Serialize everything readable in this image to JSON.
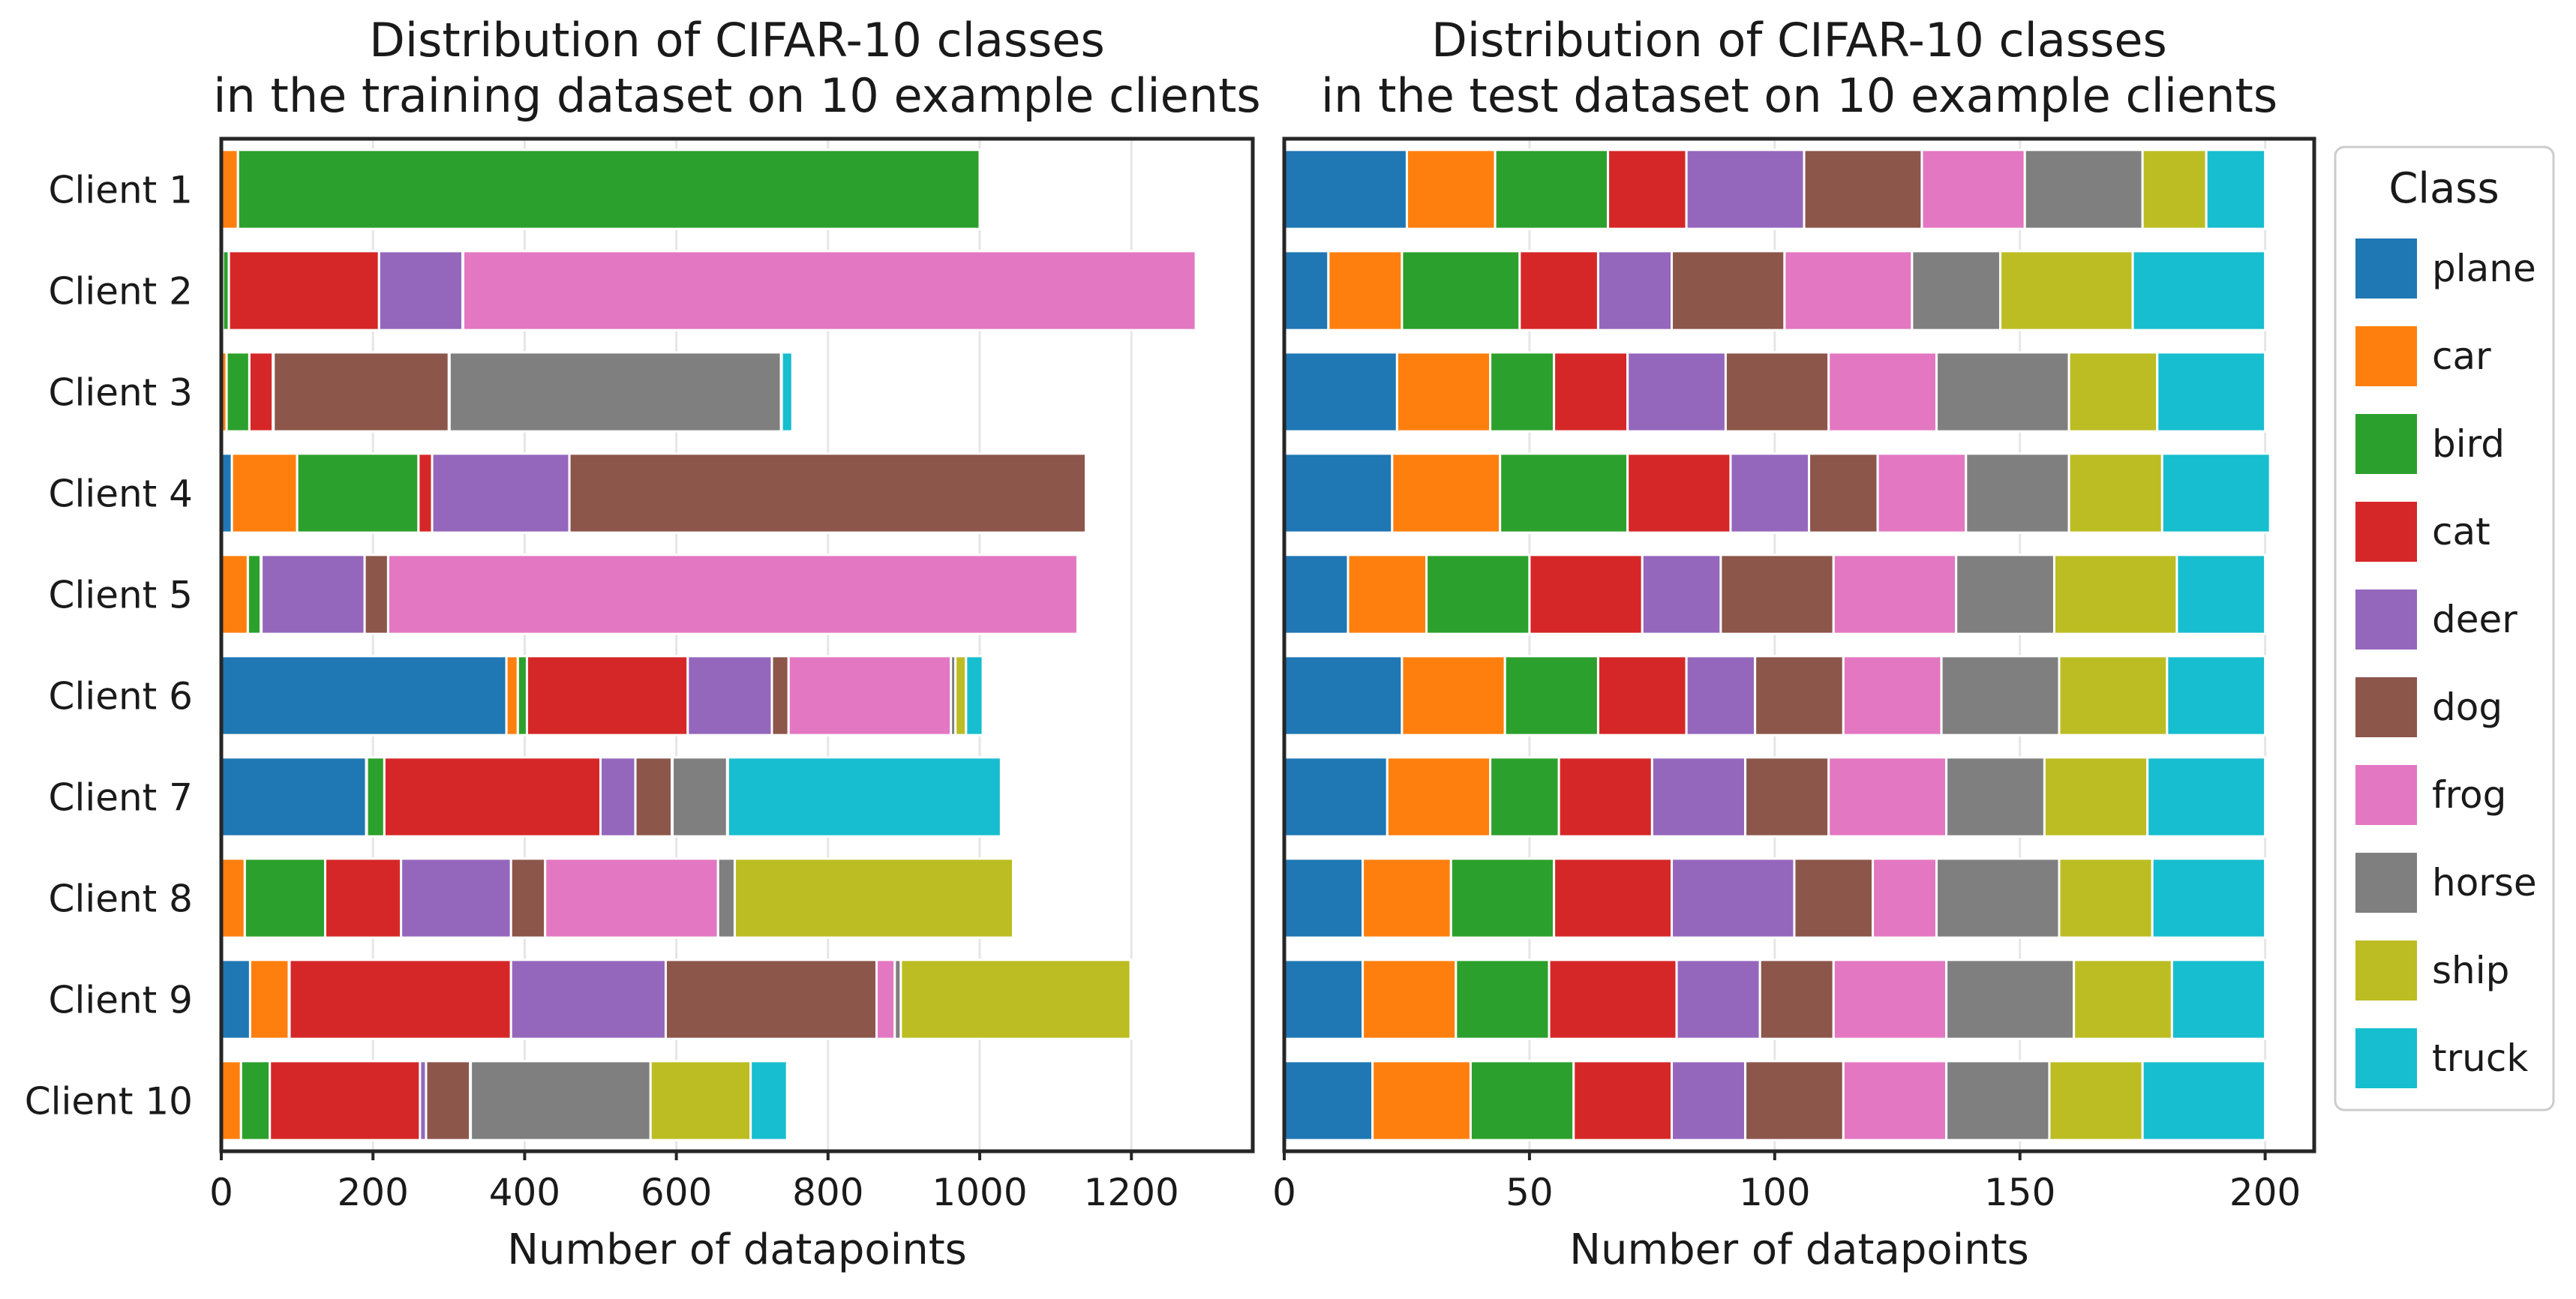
{
  "chart_data": [
    {
      "type": "bar",
      "orientation": "horizontal",
      "stacked": true,
      "title_lines": [
        "Distribution of CIFAR-10 classes",
        "in the training dataset on 10 example clients"
      ],
      "xlabel": "Number of datapoints",
      "xlim": [
        0,
        1360
      ],
      "xticks": [
        0,
        200,
        400,
        600,
        800,
        1000,
        1200
      ],
      "grid": "vertical",
      "categories": [
        "Client 1",
        "Client 2",
        "Client 3",
        "Client 4",
        "Client 5",
        "Client 6",
        "Client 7",
        "Client 8",
        "Client 9",
        "Client 10"
      ],
      "series": [
        {
          "name": "plane",
          "values": [
            1,
            1,
            1,
            14,
            1,
            376,
            191,
            1,
            38,
            1
          ]
        },
        {
          "name": "car",
          "values": [
            21,
            1,
            6,
            86,
            34,
            15,
            1,
            30,
            51,
            25
          ]
        },
        {
          "name": "bird",
          "values": [
            978,
            8,
            30,
            160,
            17,
            12,
            23,
            106,
            1,
            38
          ]
        },
        {
          "name": "cat",
          "values": [
            1,
            198,
            31,
            18,
            1,
            212,
            285,
            100,
            292,
            198
          ]
        },
        {
          "name": "deer",
          "values": [
            1,
            110,
            1,
            181,
            136,
            111,
            46,
            145,
            204,
            8
          ]
        },
        {
          "name": "dog",
          "values": [
            1,
            1,
            231,
            681,
            31,
            22,
            48,
            45,
            278,
            58
          ]
        },
        {
          "name": "frog",
          "values": [
            1,
            966,
            1,
            1,
            909,
            214,
            1,
            228,
            24,
            1
          ]
        },
        {
          "name": "horse",
          "values": [
            1,
            1,
            437,
            1,
            1,
            6,
            72,
            22,
            8,
            237
          ]
        },
        {
          "name": "ship",
          "values": [
            1,
            1,
            1,
            1,
            1,
            14,
            1,
            367,
            303,
            132
          ]
        },
        {
          "name": "truck",
          "values": [
            1,
            1,
            14,
            1,
            1,
            22,
            360,
            1,
            1,
            48
          ]
        }
      ]
    },
    {
      "type": "bar",
      "orientation": "horizontal",
      "stacked": true,
      "title_lines": [
        "Distribution of CIFAR-10 classes",
        "in the test dataset on 10 example clients"
      ],
      "xlabel": "Number of datapoints",
      "xlim": [
        0,
        210
      ],
      "xticks": [
        0,
        50,
        100,
        150,
        200
      ],
      "grid": "vertical",
      "categories": [
        "Client 1",
        "Client 2",
        "Client 3",
        "Client 4",
        "Client 5",
        "Client 6",
        "Client 7",
        "Client 8",
        "Client 9",
        "Client 10"
      ],
      "series": [
        {
          "name": "plane",
          "values": [
            25,
            9,
            23,
            22,
            13,
            24,
            21,
            16,
            16,
            18
          ]
        },
        {
          "name": "car",
          "values": [
            18,
            15,
            19,
            22,
            16,
            21,
            21,
            18,
            19,
            20
          ]
        },
        {
          "name": "bird",
          "values": [
            23,
            24,
            13,
            26,
            21,
            19,
            14,
            21,
            19,
            21
          ]
        },
        {
          "name": "cat",
          "values": [
            16,
            16,
            15,
            21,
            23,
            18,
            19,
            24,
            26,
            20
          ]
        },
        {
          "name": "deer",
          "values": [
            24,
            15,
            20,
            16,
            16,
            14,
            19,
            25,
            17,
            15
          ]
        },
        {
          "name": "dog",
          "values": [
            24,
            23,
            21,
            14,
            23,
            18,
            17,
            16,
            15,
            20
          ]
        },
        {
          "name": "frog",
          "values": [
            21,
            26,
            22,
            18,
            25,
            20,
            24,
            13,
            23,
            21
          ]
        },
        {
          "name": "horse",
          "values": [
            24,
            18,
            27,
            21,
            20,
            24,
            20,
            25,
            26,
            21
          ]
        },
        {
          "name": "ship",
          "values": [
            13,
            27,
            18,
            19,
            25,
            22,
            21,
            19,
            20,
            19
          ]
        },
        {
          "name": "truck",
          "values": [
            12,
            27,
            22,
            22,
            18,
            20,
            24,
            23,
            19,
            25
          ]
        }
      ]
    }
  ],
  "legend": {
    "title": "Class",
    "placement": "right",
    "items": [
      {
        "label": "plane",
        "color": "#1f77b4"
      },
      {
        "label": "car",
        "color": "#ff7f0e"
      },
      {
        "label": "bird",
        "color": "#2ca02c"
      },
      {
        "label": "cat",
        "color": "#d62728"
      },
      {
        "label": "deer",
        "color": "#9467bd"
      },
      {
        "label": "dog",
        "color": "#8c564b"
      },
      {
        "label": "frog",
        "color": "#e377c2"
      },
      {
        "label": "horse",
        "color": "#7f7f7f"
      },
      {
        "label": "ship",
        "color": "#bcbd22"
      },
      {
        "label": "truck",
        "color": "#17becf"
      }
    ]
  }
}
